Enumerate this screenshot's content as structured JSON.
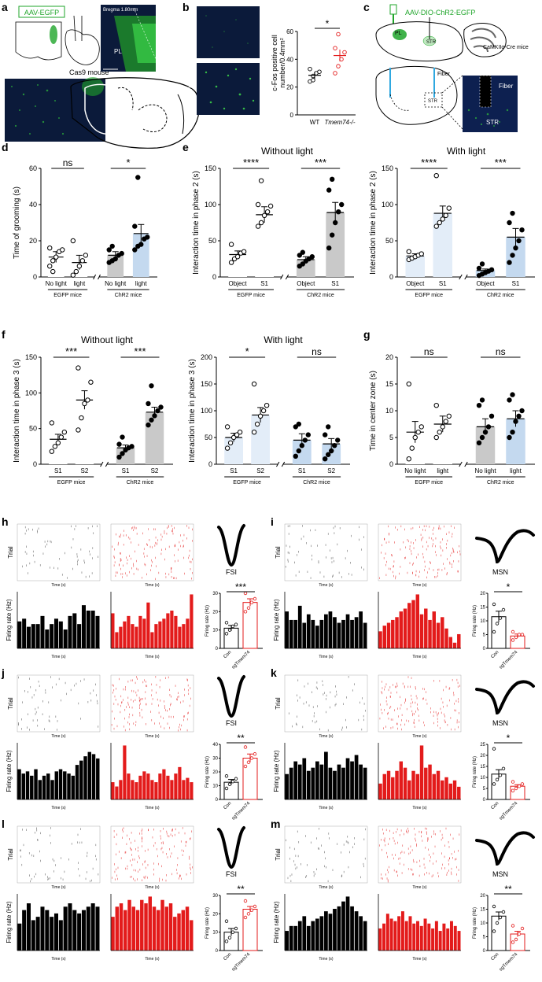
{
  "panel_letters": [
    "a",
    "b",
    "c",
    "d",
    "e",
    "f",
    "g",
    "h",
    "i",
    "j",
    "k",
    "l",
    "m"
  ],
  "colors": {
    "green": "#1fa52a",
    "bright_green": "#3cd64a",
    "micro_bg": "#0b1a3a",
    "micro_green": "#2f8f2f",
    "bar_gray": "#c9c9c9",
    "bar_blue": "#c4d9ef",
    "bar_lightblue": "#e3edf8",
    "red": "#e31b1b",
    "black": "#000000"
  },
  "a": {
    "label_box": "AAV-EGFP",
    "bregma": "Bregma 1.80mm",
    "region": "PL",
    "mouse_label": "Cas9 mouse"
  },
  "b": {
    "img_labels": [
      "WT",
      "Tmem74-/-"
    ],
    "ylabel_line1": "c-Fos positive cell",
    "ylabel_line2": "number/0.4mm²",
    "sig": "*",
    "chart_data": {
      "type": "scatter",
      "categories": [
        "WT",
        "Tmem74-/-"
      ],
      "ylim": [
        0,
        60
      ],
      "yticks": [
        0,
        20,
        40,
        60
      ],
      "points": [
        [
          24,
          28,
          30,
          31,
          33,
          25
        ],
        [
          30,
          35,
          40,
          45,
          48,
          58
        ]
      ],
      "means": [
        28.5,
        42.7
      ],
      "sems": [
        2.5,
        4.2
      ]
    }
  },
  "c": {
    "virus": "AAV-DIO-ChR2-EGFP",
    "mouse": "CaMKIIα-Cre mice",
    "region_pl": "PL",
    "region_str": "STR",
    "fiber": "Fiber",
    "micro_fiber": "Fiber",
    "micro_str": "STR"
  },
  "charts": [
    {
      "id": "d",
      "title": "",
      "ylabel": "Time of grooming (s)",
      "ylim": [
        0,
        60
      ],
      "yticks": [
        0,
        20,
        40,
        60
      ],
      "categories": [
        "No light",
        "light",
        "No light",
        "light"
      ],
      "groups": [
        "EGFP mice",
        "ChR2 mice"
      ],
      "bar_colors": [
        "white",
        "white",
        "gray",
        "blue"
      ],
      "values": [
        11,
        8,
        12,
        24
      ],
      "sems": [
        3,
        4,
        2,
        5
      ],
      "points": [
        [
          6,
          9,
          11,
          14,
          15,
          16,
          3
        ],
        [
          1,
          3,
          6,
          9,
          12,
          20
        ],
        [
          8,
          9,
          10,
          12,
          13,
          15,
          17
        ],
        [
          15,
          17,
          18,
          21,
          22,
          28,
          55
        ]
      ],
      "sig": [
        {
          "a": 0,
          "b": 1,
          "t": "ns"
        },
        {
          "a": 2,
          "b": 3,
          "t": "*"
        }
      ]
    },
    {
      "id": "e1",
      "title": "Without light",
      "ylabel": "Interaction time in phase 2 (s)",
      "ylim": [
        0,
        150
      ],
      "yticks": [
        0,
        50,
        100,
        150
      ],
      "categories": [
        "Object",
        "S1",
        "Object",
        "S1"
      ],
      "groups": [
        "EGFP mice",
        "ChR2 mice"
      ],
      "bar_colors": [
        "white",
        "white",
        "gray",
        "gray"
      ],
      "values": [
        31,
        86,
        24,
        89
      ],
      "sems": [
        5,
        11,
        4,
        14
      ],
      "points": [
        [
          20,
          25,
          28,
          33,
          35,
          45
        ],
        [
          70,
          75,
          85,
          90,
          98,
          100,
          133
        ],
        [
          15,
          18,
          22,
          25,
          28,
          30,
          34
        ],
        [
          40,
          58,
          75,
          90,
          100,
          120,
          135
        ]
      ],
      "sig": [
        {
          "a": 0,
          "b": 1,
          "t": "****"
        },
        {
          "a": 2,
          "b": 3,
          "t": "***"
        }
      ]
    },
    {
      "id": "e2",
      "title": "With light",
      "ylabel": "Interaction time in phase 2 (s)",
      "ylim": [
        0,
        150
      ],
      "yticks": [
        0,
        50,
        100,
        150
      ],
      "categories": [
        "Object",
        "S1",
        "Object",
        "S1"
      ],
      "groups": [
        "EGFP mice",
        "ChR2 mice"
      ],
      "bar_colors": [
        "lightblue",
        "lightblue",
        "blue",
        "blue"
      ],
      "values": [
        29,
        88,
        9,
        55
      ],
      "sems": [
        3,
        10,
        2,
        12
      ],
      "points": [
        [
          24,
          26,
          28,
          30,
          32,
          35
        ],
        [
          70,
          75,
          80,
          85,
          95,
          140
        ],
        [
          2,
          4,
          6,
          8,
          10,
          12,
          18
        ],
        [
          20,
          30,
          40,
          50,
          65,
          75,
          88
        ]
      ],
      "sig": [
        {
          "a": 0,
          "b": 1,
          "t": "****"
        },
        {
          "a": 2,
          "b": 3,
          "t": "***"
        }
      ]
    },
    {
      "id": "f1",
      "title": "Without light",
      "ylabel": "Interaction time in phase 3 (s)",
      "ylim": [
        0,
        150
      ],
      "yticks": [
        0,
        50,
        100,
        150
      ],
      "categories": [
        "S1",
        "S2",
        "S1",
        "S2"
      ],
      "groups": [
        "EGFP mice",
        "ChR2 mice"
      ],
      "bar_colors": [
        "white",
        "white",
        "gray",
        "gray"
      ],
      "values": [
        35,
        90,
        23,
        73
      ],
      "sems": [
        7,
        13,
        4,
        7
      ],
      "points": [
        [
          18,
          25,
          30,
          38,
          45,
          58
        ],
        [
          48,
          65,
          85,
          90,
          115,
          135
        ],
        [
          10,
          15,
          20,
          23,
          25,
          28,
          38
        ],
        [
          55,
          62,
          68,
          75,
          80,
          85,
          110
        ]
      ],
      "sig": [
        {
          "a": 0,
          "b": 1,
          "t": "***"
        },
        {
          "a": 2,
          "b": 3,
          "t": "***"
        }
      ]
    },
    {
      "id": "f2",
      "title": "With light",
      "ylabel": "Interaction time in phase 3 (s)",
      "ylim": [
        0,
        200
      ],
      "yticks": [
        0,
        50,
        100,
        150,
        200
      ],
      "categories": [
        "S1",
        "S2",
        "S1",
        "S2"
      ],
      "groups": [
        "EGFP mice",
        "ChR2 mice"
      ],
      "bar_colors": [
        "lightblue",
        "lightblue",
        "blue",
        "blue"
      ],
      "values": [
        50,
        92,
        45,
        38
      ],
      "sems": [
        8,
        14,
        12,
        10
      ],
      "points": [
        [
          30,
          40,
          50,
          55,
          60,
          70
        ],
        [
          60,
          75,
          90,
          100,
          110,
          150
        ],
        [
          15,
          25,
          35,
          45,
          55,
          70,
          75
        ],
        [
          10,
          18,
          25,
          35,
          45,
          55,
          70
        ]
      ],
      "sig": [
        {
          "a": 0,
          "b": 1,
          "t": "*"
        },
        {
          "a": 2,
          "b": 3,
          "t": "ns"
        }
      ]
    },
    {
      "id": "g",
      "title": "",
      "ylabel": "Time in center zone (s)",
      "ylim": [
        0,
        20
      ],
      "yticks": [
        0,
        5,
        10,
        15,
        20
      ],
      "categories": [
        "No light",
        "light",
        "No light",
        "light"
      ],
      "groups": [
        "EGFP mice",
        "ChR2 mice"
      ],
      "bar_colors": [
        "white",
        "white",
        "gray",
        "blue"
      ],
      "values": [
        6,
        7.5,
        7,
        8.5
      ],
      "sems": [
        2,
        1.5,
        1.5,
        1.5
      ],
      "points": [
        [
          1,
          3,
          5,
          6,
          7,
          15
        ],
        [
          5,
          6,
          7,
          8,
          9,
          11
        ],
        [
          4,
          5,
          6,
          7,
          9,
          11,
          12
        ],
        [
          5,
          6,
          8,
          9,
          10,
          12,
          13
        ]
      ],
      "sig": [
        {
          "a": 0,
          "b": 1,
          "t": "ns"
        },
        {
          "a": 2,
          "b": 3,
          "t": "ns"
        }
      ]
    }
  ],
  "ephys_common": {
    "trial_label": "Trial",
    "rate_label": "Firing rate (Hz)",
    "time_label": "Time (s)",
    "summary_ylabel": "Firing rate (Hz)",
    "groups": [
      "Con",
      "sgTmem74"
    ]
  },
  "ephys": [
    {
      "id": "h",
      "cell": "FSI",
      "sig": "***",
      "ylim": [
        0,
        30
      ],
      "con": [
        8,
        10,
        12,
        13,
        14
      ],
      "sg": [
        20,
        22,
        25,
        27,
        30
      ],
      "con_mean": 11,
      "sg_mean": 25,
      "con_sem": 1.5,
      "sg_sem": 2,
      "hist_black": [
        10,
        11,
        8,
        9,
        9,
        12,
        7,
        9,
        11,
        10,
        7,
        12,
        13,
        9,
        16,
        14,
        14,
        12
      ],
      "hist_red": [
        13,
        6,
        8,
        10,
        12,
        9,
        8,
        12,
        11,
        17,
        6,
        9,
        10,
        11,
        13,
        14,
        12,
        8,
        9,
        11,
        20
      ]
    },
    {
      "id": "i",
      "cell": "MSN",
      "sig": "*",
      "ylim": [
        0,
        20
      ],
      "con": [
        6,
        9,
        11,
        14,
        16
      ],
      "sg": [
        3,
        4,
        5,
        5,
        6
      ],
      "con_mean": 11.5,
      "sg_mean": 4.5,
      "con_sem": 2,
      "sg_sem": 0.7,
      "hist_black": [
        13,
        10,
        10,
        15,
        9,
        12,
        10,
        8,
        10,
        12,
        13,
        11,
        9,
        10,
        12,
        10,
        11,
        13,
        9
      ],
      "hist_red": [
        6,
        8,
        9,
        10,
        11,
        13,
        14,
        16,
        17,
        19,
        12,
        14,
        10,
        13,
        9,
        11,
        7,
        4,
        2,
        5
      ]
    },
    {
      "id": "j",
      "cell": "FSI",
      "sig": "**",
      "ylim": [
        0,
        40
      ],
      "con": [
        8,
        11,
        13,
        15,
        17
      ],
      "sg": [
        24,
        27,
        30,
        33,
        38
      ],
      "con_mean": 12.5,
      "sg_mean": 30,
      "con_sem": 2,
      "sg_sem": 3,
      "hist_black": [
        14,
        12,
        13,
        11,
        14,
        9,
        11,
        12,
        9,
        13,
        14,
        13,
        12,
        11,
        16,
        18,
        20,
        22,
        21,
        19
      ],
      "hist_red": [
        8,
        6,
        9,
        25,
        12,
        9,
        8,
        11,
        13,
        12,
        9,
        8,
        12,
        14,
        11,
        9,
        12,
        15,
        9,
        10,
        8
      ]
    },
    {
      "id": "k",
      "cell": "MSN",
      "sig": "*",
      "ylim": [
        0,
        25
      ],
      "con": [
        7,
        9,
        11,
        14,
        23
      ],
      "sg": [
        4,
        5,
        6,
        7,
        8
      ],
      "con_mean": 11.5,
      "sg_mean": 6,
      "con_sem": 2,
      "sg_sem": 0.7,
      "hist_black": [
        8,
        10,
        12,
        11,
        13,
        9,
        10,
        12,
        11,
        15,
        10,
        9,
        11,
        10,
        13,
        12,
        14,
        11,
        10
      ],
      "hist_red": [
        5,
        8,
        9,
        7,
        9,
        12,
        10,
        6,
        9,
        8,
        17,
        10,
        11,
        8,
        9,
        6,
        7,
        5,
        6,
        4
      ]
    },
    {
      "id": "l",
      "cell": "FSI",
      "sig": "**",
      "ylim": [
        0,
        30
      ],
      "con": [
        5,
        7,
        10,
        12,
        16
      ],
      "sg": [
        18,
        20,
        22,
        24,
        27
      ],
      "con_mean": 10,
      "sg_mean": 22.5,
      "con_sem": 2,
      "sg_sem": 1.5,
      "hist_black": [
        8,
        12,
        14,
        9,
        10,
        13,
        12,
        10,
        11,
        9,
        13,
        14,
        12,
        11,
        12,
        13,
        14,
        13
      ],
      "hist_red": [
        10,
        13,
        14,
        12,
        15,
        13,
        12,
        15,
        14,
        16,
        13,
        12,
        15,
        13,
        14,
        10,
        11,
        12,
        13,
        9
      ]
    },
    {
      "id": "m",
      "cell": "MSN",
      "sig": "**",
      "ylim": [
        0,
        20
      ],
      "con": [
        7,
        10,
        12,
        14,
        16
      ],
      "sg": [
        3,
        4,
        6,
        8,
        9
      ],
      "con_mean": 12.5,
      "sg_mean": 6,
      "con_sem": 1.5,
      "sg_sem": 1,
      "hist_black": [
        8,
        10,
        10,
        12,
        14,
        10,
        12,
        13,
        14,
        16,
        15,
        17,
        18,
        20,
        22,
        18,
        16,
        14,
        12
      ],
      "hist_red": [
        9,
        11,
        15,
        13,
        12,
        14,
        16,
        12,
        14,
        11,
        12,
        10,
        13,
        11,
        9,
        12,
        8,
        11,
        9,
        12,
        10,
        8
      ]
    }
  ]
}
